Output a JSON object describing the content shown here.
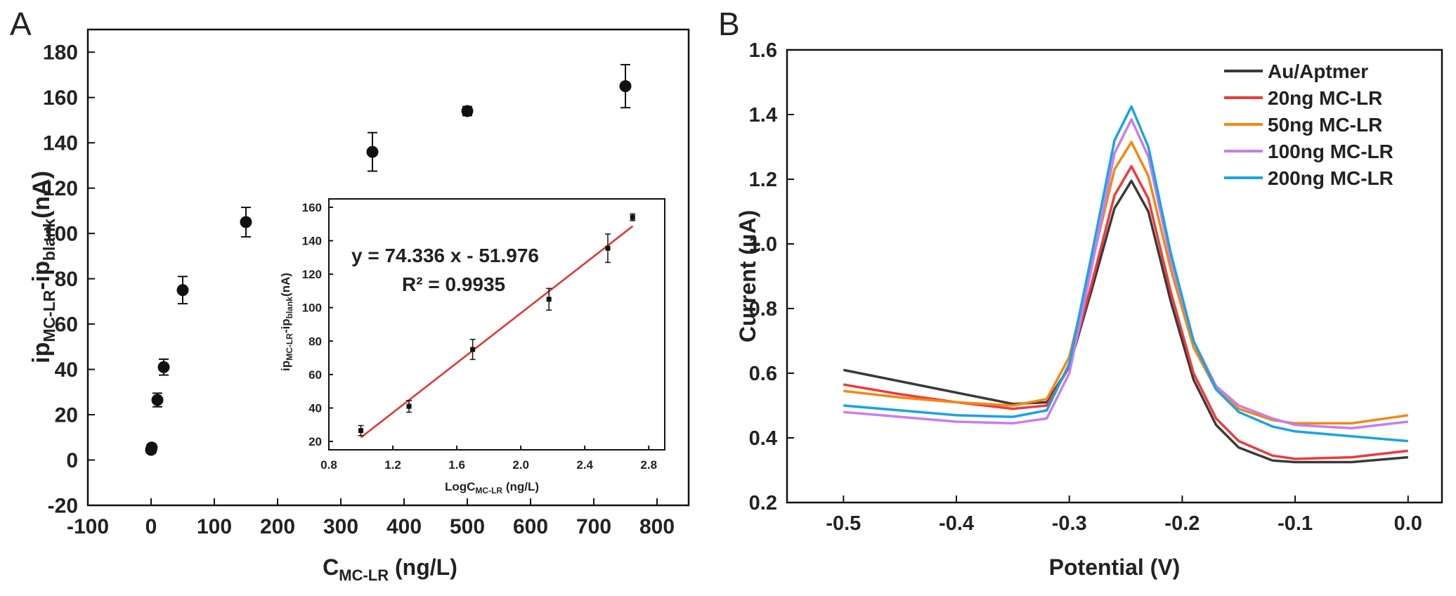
{
  "panels": {
    "a": "A",
    "b": "B"
  },
  "chart_data": [
    {
      "type": "scatter",
      "id": "A",
      "xlabel": "C",
      "xlabel_sub": "MC-LR",
      "xlabel_unit": "(ng/L)",
      "ylabel": "ip",
      "ylabel_sub1": "MC-LR",
      "ylabel_mid": "-ip",
      "ylabel_sub2": "blank",
      "ylabel_unit": "(nA)",
      "xlim": [
        -100,
        850
      ],
      "ylim": [
        -20,
        190
      ],
      "xticks": [
        -100,
        0,
        100,
        200,
        300,
        400,
        500,
        600,
        700,
        800
      ],
      "yticks": [
        -20,
        0,
        20,
        40,
        60,
        80,
        100,
        120,
        140,
        160,
        180
      ],
      "points": [
        {
          "x": 0,
          "y": 4.5,
          "err": 1.5
        },
        {
          "x": 1,
          "y": 5.5,
          "err": 1.5
        },
        {
          "x": 10,
          "y": 26.5,
          "err": 3
        },
        {
          "x": 20,
          "y": 41,
          "err": 3.5
        },
        {
          "x": 50,
          "y": 75,
          "err": 6
        },
        {
          "x": 150,
          "y": 105,
          "err": 6.5
        },
        {
          "x": 350,
          "y": 136,
          "err": 8.5
        },
        {
          "x": 500,
          "y": 154,
          "err": 2
        },
        {
          "x": 750,
          "y": 165,
          "err": 9.5
        }
      ]
    },
    {
      "type": "scatter",
      "id": "A-inset",
      "xlabel": "LogC",
      "xlabel_sub": "MC-LR",
      "xlabel_unit": "(ng/L)",
      "ylabel": "ip",
      "ylabel_sub1": "MC-LR",
      "ylabel_mid": "-ip",
      "ylabel_sub2": "blank",
      "ylabel_unit": "(nA)",
      "xlim": [
        0.8,
        2.9
      ],
      "ylim": [
        15,
        165
      ],
      "xticks": [
        0.8,
        1.2,
        1.6,
        2.0,
        2.4,
        2.8
      ],
      "yticks": [
        20,
        40,
        60,
        80,
        100,
        120,
        140,
        160
      ],
      "equation": "y = 74.336 x - 51.976",
      "r2": "R² = 0.9935",
      "fit": {
        "slope": 74.336,
        "intercept": -51.976,
        "x_range": [
          1.0,
          2.7
        ],
        "color": "#e8302a"
      },
      "points": [
        {
          "x": 1.0,
          "y": 26.5,
          "err": 3
        },
        {
          "x": 1.301,
          "y": 41,
          "err": 3.5
        },
        {
          "x": 1.699,
          "y": 75,
          "err": 6
        },
        {
          "x": 2.176,
          "y": 105,
          "err": 6.5
        },
        {
          "x": 2.544,
          "y": 135.5,
          "err": 8.5
        },
        {
          "x": 2.699,
          "y": 154,
          "err": 2
        }
      ]
    },
    {
      "type": "line",
      "id": "B",
      "xlabel": "Potential (V)",
      "ylabel": "Current (μA)",
      "xlim": [
        -0.55,
        0.03
      ],
      "ylim": [
        0.2,
        1.6
      ],
      "xticks": [
        -0.5,
        -0.4,
        -0.3,
        -0.2,
        -0.1,
        0.0
      ],
      "xtick_labels": [
        "-0.5",
        "-0.4",
        "-0.3",
        "-0.2",
        "-0.1",
        "0.0"
      ],
      "yticks": [
        0.2,
        0.4,
        0.6,
        0.8,
        1.0,
        1.2,
        1.4,
        1.6
      ],
      "ytick_labels": [
        "0.2",
        "0.4",
        "0.6",
        "0.8",
        "1.0",
        "1.2",
        "1.4",
        "1.6"
      ],
      "legend": "top-right",
      "x": [
        -0.5,
        -0.45,
        -0.4,
        -0.35,
        -0.32,
        -0.3,
        -0.28,
        -0.26,
        -0.245,
        -0.23,
        -0.21,
        -0.19,
        -0.17,
        -0.15,
        -0.12,
        -0.1,
        -0.05,
        0.0
      ],
      "series": [
        {
          "name": "Au/Aptmer",
          "color": "#3a3a3a",
          "values": [
            0.61,
            0.575,
            0.54,
            0.505,
            0.51,
            0.62,
            0.86,
            1.11,
            1.195,
            1.1,
            0.82,
            0.58,
            0.44,
            0.37,
            0.33,
            0.325,
            0.325,
            0.34
          ]
        },
        {
          "name": "20ng MC-LR",
          "color": "#ee3a3a",
          "values": [
            0.565,
            0.535,
            0.51,
            0.49,
            0.5,
            0.62,
            0.88,
            1.15,
            1.24,
            1.14,
            0.85,
            0.6,
            0.46,
            0.39,
            0.345,
            0.335,
            0.34,
            0.36
          ]
        },
        {
          "name": "50ng MC-LR",
          "color": "#f5870f",
          "values": [
            0.545,
            0.525,
            0.51,
            0.5,
            0.52,
            0.65,
            0.94,
            1.23,
            1.315,
            1.21,
            0.92,
            0.68,
            0.55,
            0.49,
            0.455,
            0.445,
            0.445,
            0.47
          ]
        },
        {
          "name": "100ng MC-LR",
          "color": "#c77df0",
          "values": [
            0.48,
            0.465,
            0.45,
            0.445,
            0.46,
            0.6,
            0.93,
            1.28,
            1.385,
            1.27,
            0.95,
            0.7,
            0.56,
            0.5,
            0.46,
            0.44,
            0.43,
            0.45
          ]
        },
        {
          "name": "200ng MC-LR",
          "color": "#18a4e3",
          "values": [
            0.5,
            0.485,
            0.47,
            0.465,
            0.485,
            0.63,
            0.97,
            1.32,
            1.425,
            1.3,
            0.97,
            0.7,
            0.55,
            0.48,
            0.435,
            0.42,
            0.405,
            0.39
          ]
        }
      ]
    }
  ]
}
